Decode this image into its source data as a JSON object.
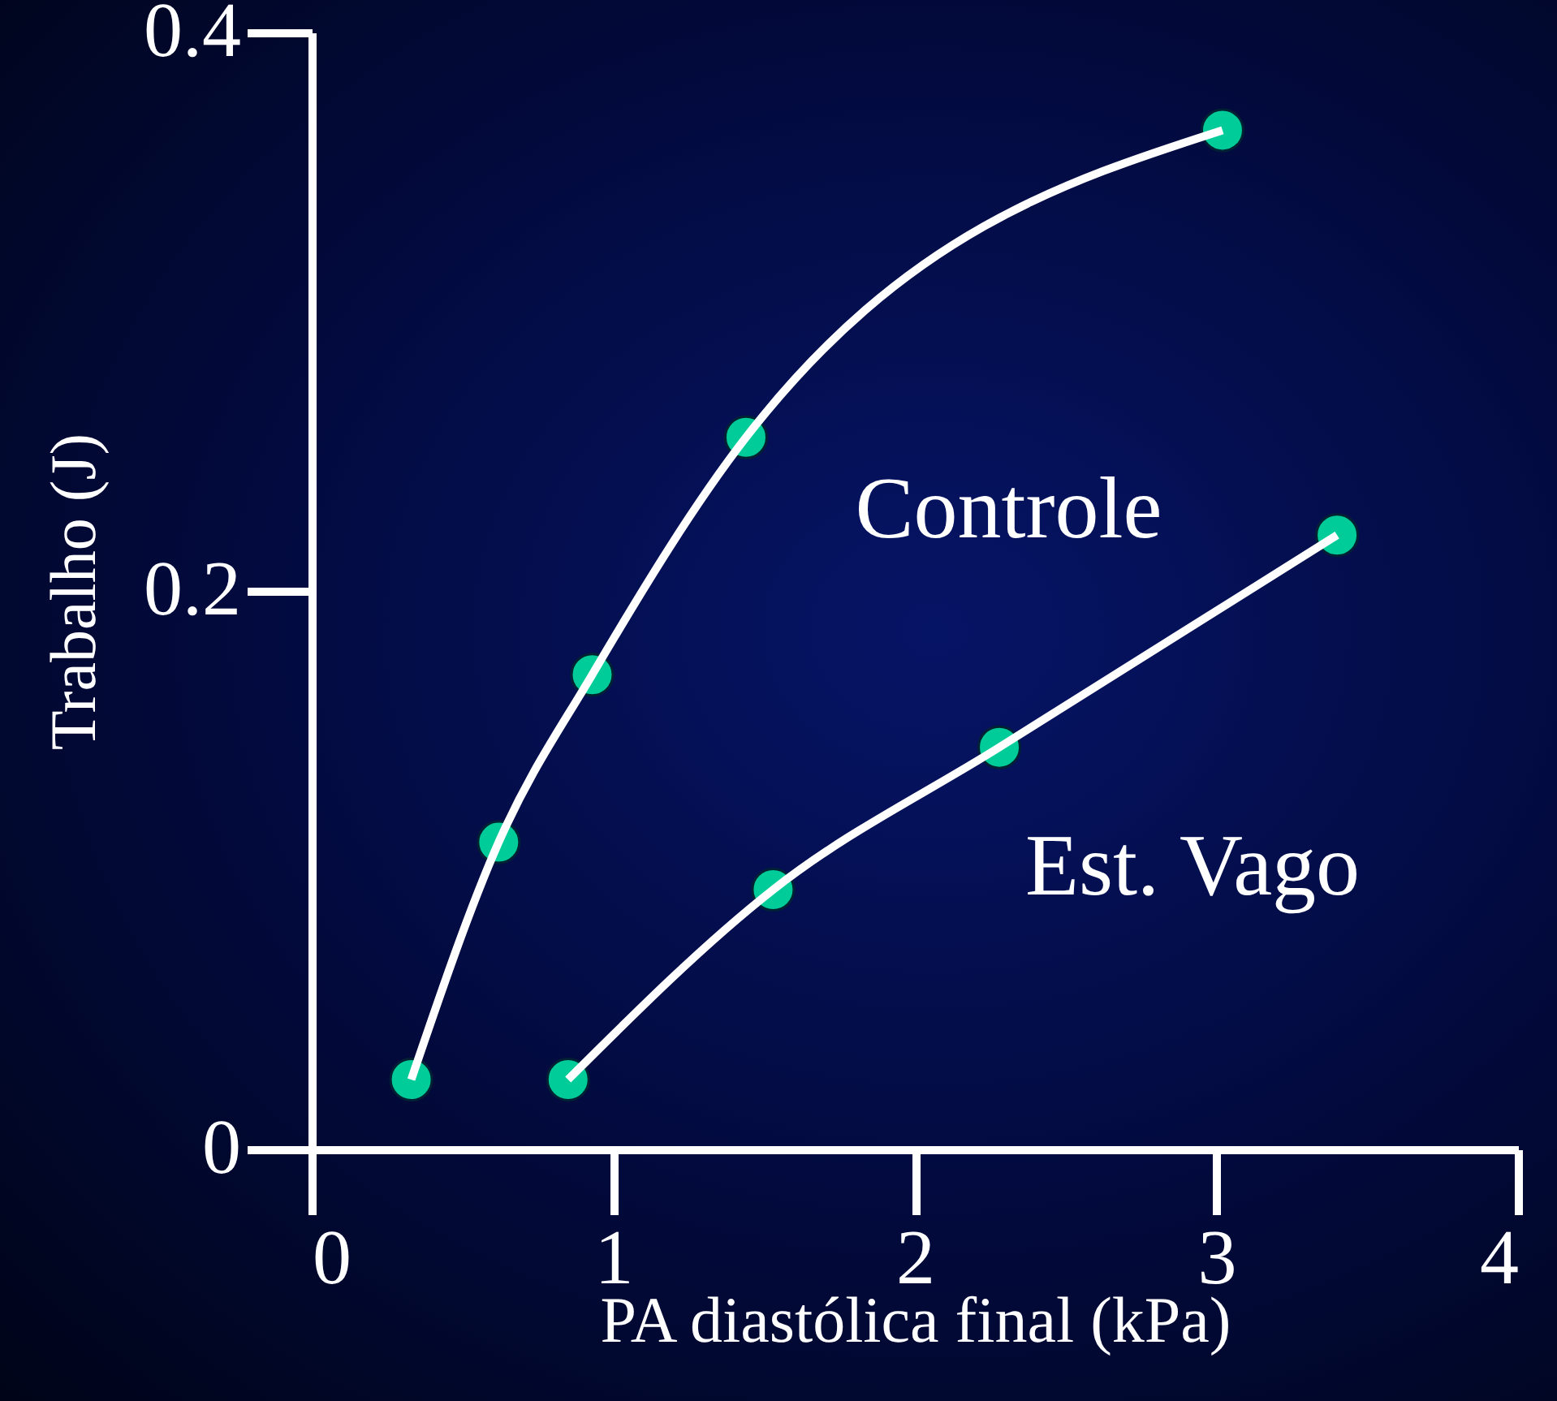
{
  "chart_data": {
    "type": "line",
    "xlabel": "PA diastólica final (kPa)",
    "ylabel": "Trabalho (J)",
    "xlim": [
      0,
      4
    ],
    "xticks": [
      0,
      1,
      2,
      3,
      4
    ],
    "ylim": [
      0,
      0.4
    ],
    "yticks": [
      {
        "value": 0,
        "label": "0"
      },
      {
        "value": 0.2,
        "label": "0.2"
      },
      {
        "value": 0.4,
        "label": "0.4"
      }
    ],
    "marker": "circle",
    "line_style": "solid",
    "grid": false,
    "series": [
      {
        "name": "Controle",
        "color": "#00cc99",
        "x": [
          0.33,
          0.62,
          0.93,
          1.44,
          3.02
        ],
        "values": [
          0.025,
          0.11,
          0.17,
          0.255,
          0.365
        ]
      },
      {
        "name": "Est. Vago",
        "color": "#00cc99",
        "x": [
          0.85,
          1.53,
          2.28,
          3.4
        ],
        "values": [
          0.025,
          0.093,
          0.144,
          0.22
        ]
      }
    ]
  }
}
